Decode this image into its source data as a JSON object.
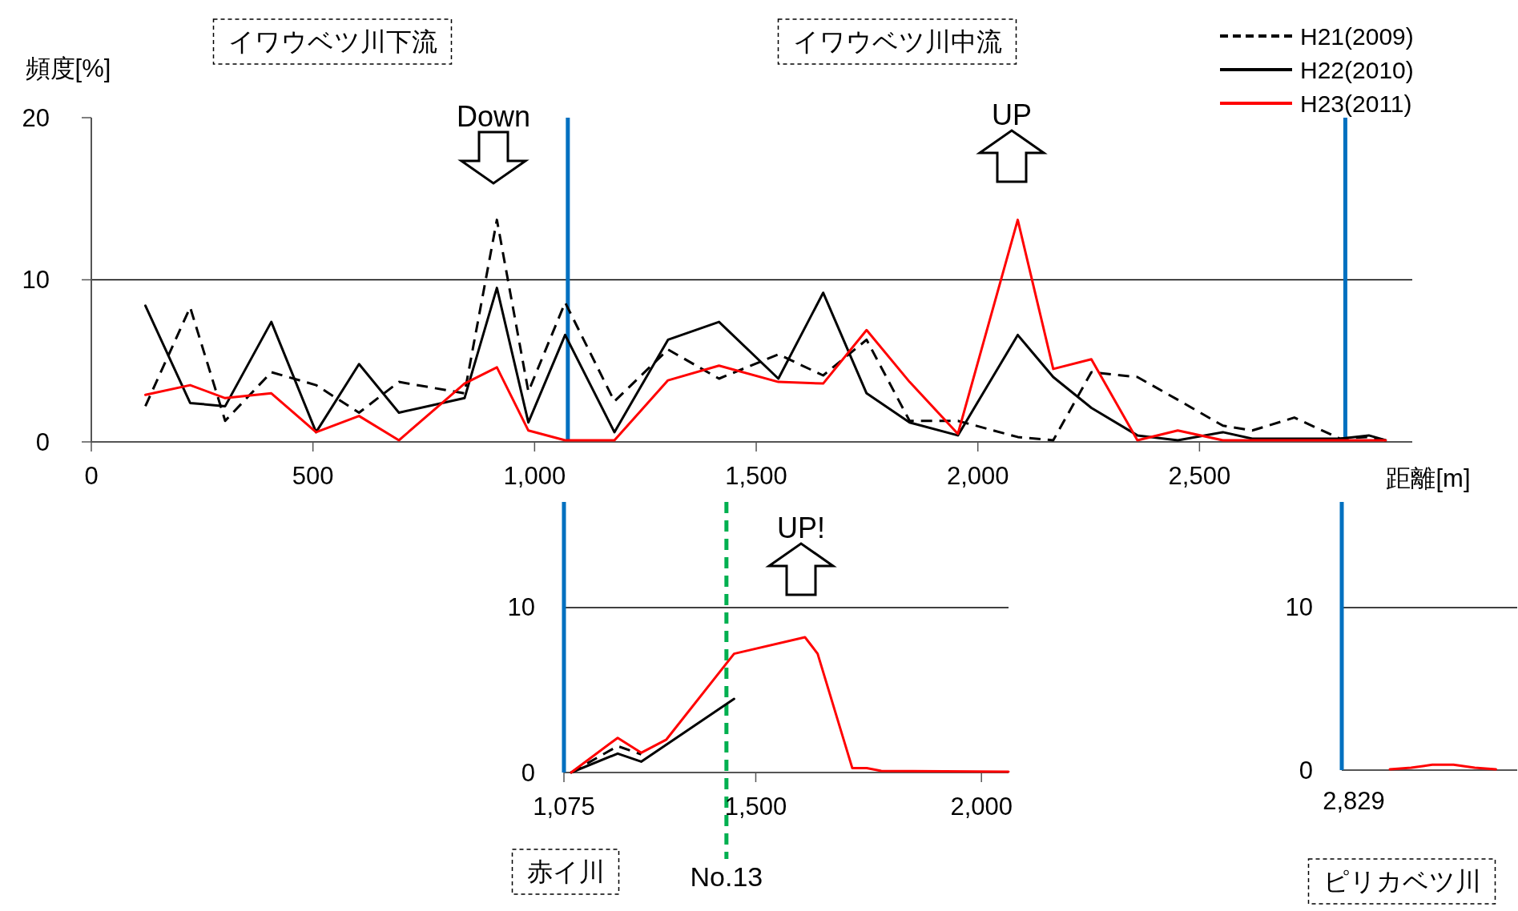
{
  "chart_data": [
    {
      "type": "line",
      "xlabel": "距離[m]",
      "ylabel": "頻度[%]",
      "xlim": [
        0,
        2980
      ],
      "ylim": [
        0,
        20
      ],
      "xticks": [
        0,
        500,
        {
          "value": 1000,
          "label": "1,000"
        },
        {
          "value": 1500,
          "label": "1,500"
        },
        {
          "value": 2000,
          "label": "2,000"
        },
        {
          "value": 2500,
          "label": "2,500"
        }
      ],
      "yticks": [
        0,
        10,
        20
      ],
      "legend": "top right",
      "annotations": [
        "イワウベツ川下流",
        "イワウベツ川中流",
        "Down",
        "UP"
      ],
      "ref_lines": [
        {
          "axis": "y",
          "value": 10,
          "color": "#000000"
        },
        {
          "axis": "x",
          "value": 1075,
          "color": "#0070c0"
        },
        {
          "axis": "x",
          "value": 2829,
          "color": "#0070c0"
        }
      ],
      "series": [
        {
          "name": "H21(2009)",
          "color": "#000000",
          "line_style": "dashed",
          "x": [
            122,
            223,
            302,
            406,
            507,
            604,
            694,
            842,
            915,
            986,
            1069,
            1180,
            1301,
            1416,
            1550,
            1651,
            1749,
            1846,
            1955,
            2090,
            2170,
            2256,
            2360,
            2451,
            2553,
            2619,
            2714,
            2817,
            2882,
            2920
          ],
          "values": [
            2.2,
            8.3,
            1.3,
            4.3,
            3.5,
            1.8,
            3.7,
            3.0,
            13.7,
            3.1,
            8.6,
            2.5,
            5.7,
            3.9,
            5.4,
            4.1,
            6.3,
            1.3,
            1.3,
            0.3,
            0.1,
            4.3,
            4.0,
            2.6,
            1.0,
            0.7,
            1.5,
            0.2,
            0.3,
            0.1
          ]
        },
        {
          "name": "H22(2010)",
          "color": "#000000",
          "x": [
            122,
            223,
            302,
            406,
            507,
            604,
            694,
            842,
            915,
            986,
            1069,
            1180,
            1301,
            1416,
            1550,
            1651,
            1749,
            1846,
            1955,
            2090,
            2170,
            2256,
            2360,
            2451,
            2553,
            2619,
            2714,
            2817,
            2882,
            2920
          ],
          "values": [
            8.4,
            2.4,
            2.2,
            7.4,
            0.6,
            4.8,
            1.8,
            2.7,
            9.5,
            1.2,
            6.6,
            0.6,
            6.3,
            7.4,
            3.9,
            9.2,
            3.0,
            1.2,
            0.4,
            6.6,
            4.0,
            2.1,
            0.4,
            0.1,
            0.6,
            0.2,
            0.2,
            0.2,
            0.4,
            0.1
          ]
        },
        {
          "name": "H23(2011)",
          "color": "#ff0000",
          "x": [
            122,
            223,
            302,
            406,
            507,
            604,
            694,
            842,
            915,
            986,
            1069,
            1180,
            1301,
            1416,
            1550,
            1651,
            1749,
            1846,
            1955,
            2090,
            2170,
            2256,
            2360,
            2451,
            2553,
            2619,
            2714,
            2817,
            2882,
            2920
          ],
          "values": [
            2.9,
            3.5,
            2.7,
            3.0,
            0.6,
            1.6,
            0.1,
            3.6,
            4.6,
            0.7,
            0.1,
            0.1,
            3.8,
            4.7,
            3.7,
            3.6,
            6.9,
            3.7,
            0.5,
            13.7,
            4.5,
            5.1,
            0.1,
            0.7,
            0.1,
            0.1,
            0.1,
            0.1,
            0.1,
            0.1
          ]
        }
      ]
    },
    {
      "type": "line",
      "title": "赤イ川",
      "xlim": [
        1075,
        2060
      ],
      "ylim": [
        0,
        16.4
      ],
      "xticks": [
        {
          "value": 1075,
          "label": "1,075"
        },
        {
          "value": 1500,
          "label": "1,500"
        },
        {
          "value": 2000,
          "label": "2,000"
        }
      ],
      "yticks": [
        0,
        10
      ],
      "annotations": [
        "UP!"
      ],
      "ref_lines": [
        {
          "axis": "y",
          "value": 10,
          "color": "#000000"
        },
        {
          "axis": "x",
          "value": 1435,
          "color": "#00b050",
          "line_style": "dashed",
          "label": "No.13"
        }
      ],
      "series": [
        {
          "color": "#000000",
          "line_style": "dashed",
          "x": [
            1091,
            1194,
            1246
          ],
          "values": [
            0,
            1.6,
            1.1
          ]
        },
        {
          "color": "#000000",
          "x": [
            1091,
            1194,
            1246,
            1452
          ],
          "values": [
            0,
            1.15,
            0.66,
            4.46
          ]
        },
        {
          "color": "#ff0000",
          "x": [
            1091,
            1194,
            1246,
            1302,
            1452,
            1609,
            1637,
            1714,
            1746,
            1778,
            2060
          ],
          "values": [
            0,
            2.1,
            1.2,
            2.0,
            7.2,
            8.2,
            7.2,
            0.26,
            0.26,
            0.1,
            0.05
          ]
        }
      ]
    },
    {
      "type": "line",
      "title": "ピリカベツ川",
      "categories": [
        null,
        null,
        null,
        null,
        null,
        null
      ],
      "ylim": [
        0,
        16.5
      ],
      "yticks": [
        0,
        10
      ],
      "annotations": [
        "2,829"
      ],
      "ref_lines": [
        {
          "axis": "y",
          "value": 10,
          "color": "#000000"
        }
      ],
      "series": [
        {
          "color": "#ff0000",
          "values": [
            0.05,
            0.15,
            0.33,
            0.33,
            0.15,
            0.05
          ]
        }
      ]
    }
  ]
}
